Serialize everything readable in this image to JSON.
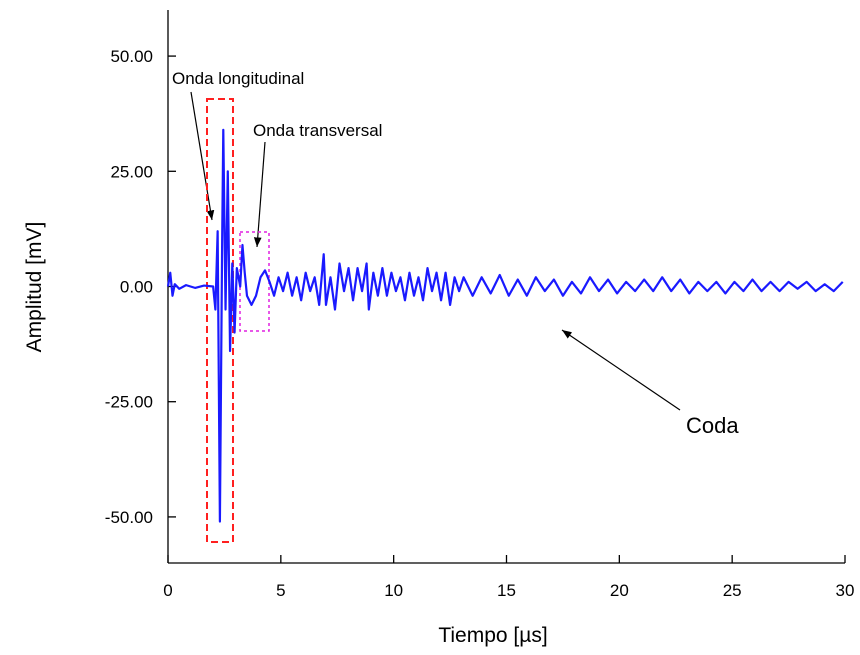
{
  "chart_data": {
    "type": "line",
    "x_label": "Tiempo [µs]",
    "y_label": "Amplitud [mV]",
    "annotations": [
      "Onda longitudinal",
      "Onda transversal",
      "Coda"
    ],
    "color": "#1a1aff",
    "xlim": [
      0,
      30
    ],
    "ylim": [
      -60,
      60
    ],
    "xticks": [
      0,
      5,
      10,
      15,
      20,
      25,
      30
    ],
    "yticks": [
      {
        "value": -50,
        "label": "-50.00"
      },
      {
        "value": -25,
        "label": "-25.00"
      },
      {
        "value": 0,
        "label": "0.00"
      },
      {
        "value": 25,
        "label": "25.00"
      },
      {
        "value": 50,
        "label": "50.00"
      }
    ],
    "x": [
      0,
      0.1,
      0.2,
      0.3,
      0.5,
      0.8,
      1.2,
      1.6,
      2.0,
      2.1,
      2.2,
      2.3,
      2.4,
      2.45,
      2.55,
      2.65,
      2.75,
      2.85,
      2.95,
      3.05,
      3.2,
      3.3,
      3.4,
      3.5,
      3.7,
      3.9,
      4.1,
      4.3,
      4.5,
      4.7,
      4.9,
      5.1,
      5.3,
      5.5,
      5.7,
      5.9,
      6.1,
      6.3,
      6.5,
      6.7,
      6.9,
      7.0,
      7.2,
      7.4,
      7.6,
      7.8,
      8.0,
      8.2,
      8.4,
      8.6,
      8.8,
      8.9,
      9.1,
      9.3,
      9.5,
      9.7,
      9.9,
      10.1,
      10.3,
      10.5,
      10.7,
      10.9,
      11.1,
      11.3,
      11.5,
      11.7,
      11.9,
      12.1,
      12.3,
      12.5,
      12.7,
      12.9,
      13.1,
      13.5,
      13.9,
      14.3,
      14.7,
      15.1,
      15.5,
      15.9,
      16.3,
      16.7,
      17.1,
      17.5,
      17.9,
      18.3,
      18.7,
      19.1,
      19.5,
      19.9,
      20.3,
      20.7,
      21.1,
      21.5,
      21.9,
      22.3,
      22.7,
      23.1,
      23.5,
      23.9,
      24.3,
      24.7,
      25.1,
      25.5,
      25.9,
      26.3,
      26.7,
      27.1,
      27.5,
      27.9,
      28.3,
      28.7,
      29.1,
      29.5,
      29.9
    ],
    "values": [
      0,
      3,
      -2,
      0.5,
      -0.5,
      0.3,
      -0.3,
      0.2,
      0,
      -5,
      12,
      -51,
      10,
      34,
      -5,
      25,
      -14,
      5,
      -10,
      4,
      0,
      9,
      3,
      -2,
      -4,
      -2,
      2,
      3.5,
      1,
      -2,
      2,
      -1,
      3,
      -2,
      2,
      -3,
      3,
      -1,
      2,
      -4,
      7,
      -4,
      2,
      -5,
      5,
      -1,
      4,
      -3,
      4,
      -1,
      5,
      -5,
      3,
      -2,
      4,
      -2,
      3,
      -1,
      2,
      -3,
      3,
      -2,
      2,
      -3,
      4,
      -1,
      3,
      -3,
      3,
      -4,
      2,
      -1,
      2,
      -2,
      2,
      -1.5,
      2.5,
      -2,
      1.5,
      -2,
      2,
      -1,
      1.5,
      -2,
      1,
      -1.5,
      2,
      -1,
      1.5,
      -1.5,
      1,
      -1,
      1.5,
      -1,
      2,
      -1,
      1.5,
      -1.5,
      1,
      -1,
      1,
      -1.5,
      1,
      -1,
      1.5,
      -1,
      1,
      -1,
      1,
      -0.5,
      1,
      -1,
      0.5,
      -1,
      1
    ]
  }
}
